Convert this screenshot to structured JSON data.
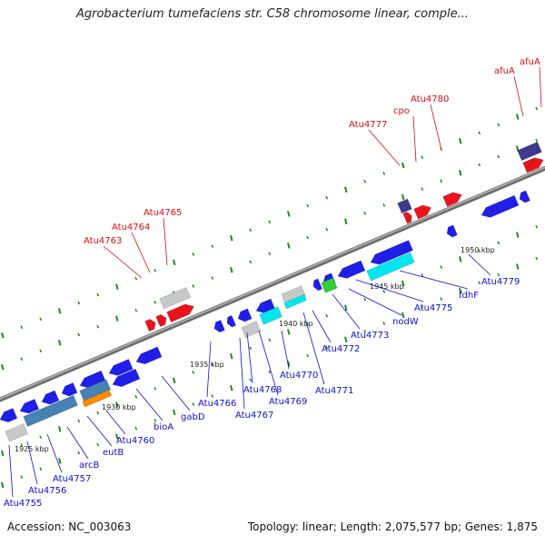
{
  "header": {
    "title": "Agrobacterium tumefaciens str. C58 chromosome linear, comple..."
  },
  "footer": {
    "accession": "Accession: NC_003063",
    "summary": "Topology: linear; Length: 2,075,577 bp; Genes: 1,875"
  },
  "colors": {
    "forward_gene": "#e8141c",
    "reverse_gene": "#1f1fe6",
    "pseudo_gene": "#c8c8c8",
    "steelblue_gene": "#4682b4",
    "orange_gene": "#ff8c00",
    "cyan_gene": "#00e5ee",
    "green_gene": "#33cc33",
    "slate_gene": "#3e3a8c",
    "axis": "#8c8c8c",
    "tick": "#1a8c1a",
    "forward_label": "#d01010",
    "reverse_label": "#1010c8"
  },
  "scale_labels": [
    "1925 kbp",
    "1930 kbp",
    "1935 kbp",
    "1940 kbp",
    "1945 kbp",
    "1950 kbp"
  ],
  "genes_top": [
    "Atu4763",
    "Atu4764",
    "Atu4765",
    "Atu4777",
    "cpo",
    "Atu4780",
    "afuA",
    "afuA"
  ],
  "genes_bottom": [
    "Atu4755",
    "Atu4756",
    "Atu4757",
    "arcB",
    "eutB",
    "Atu4760",
    "bioA",
    "gabD",
    "Atu4766",
    "Atu4767",
    "Atu4768",
    "Atu4769",
    "Atu4770",
    "Atu4771",
    "Atu4772",
    "Atu4773",
    "nodW",
    "Atu4775",
    "fdhF",
    "Atu4779"
  ]
}
